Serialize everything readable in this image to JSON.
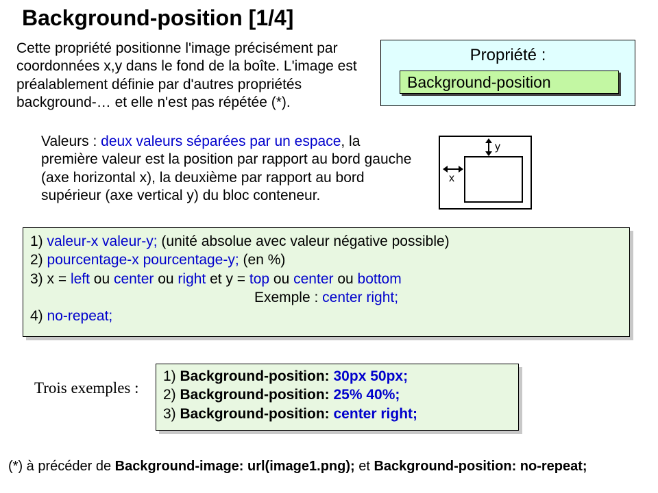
{
  "title": "Background-position [1/4]",
  "intro": "Cette propriété positionne l'image précisément par coordonnées x,y dans le fond de la boîte. L'image est préalablement définie par d'autres propriétés background-… et elle n'est pas répétée (*).",
  "propbox": {
    "label": "Propriété :",
    "value": "Background-position",
    "bg": "#e0ffff",
    "badge_bg": "#c3f7a3",
    "border": "#000000"
  },
  "values": {
    "prefix": "Valeurs : ",
    "highlight": "deux valeurs séparées par un espace",
    "rest": ", la première valeur est la position par rapport au bord gauche (axe horizontal x), la deuxième par rapport au bord supérieur (axe vertical y) du bloc conteneur."
  },
  "diagram": {
    "x": "x",
    "y": "y",
    "border": "#000000"
  },
  "rules": {
    "bg": "#e8f7e1",
    "l1_a": "1) ",
    "l1_b": "valeur-x valeur-y;",
    "l1_c": " (unité absolue avec valeur négative possible)",
    "l2_a": "2) ",
    "l2_b": "pourcentage-x pourcentage-y;",
    "l2_c": "  (en %)",
    "l3_a": "3) x = ",
    "l3_left": "left",
    "l3_or1": " ou ",
    "l3_center1": "center",
    "l3_or2": " ou ",
    "l3_right": "right",
    "l3_mid": " et y = ",
    "l3_top": "top",
    "l3_or3": " ou ",
    "l3_center2": "center",
    "l3_or4": " ou ",
    "l3_bottom": "bottom",
    "l4_a": "Exemple : ",
    "l4_b": "center right;",
    "l5_a": "4) ",
    "l5_b": "no-repeat;"
  },
  "trois": "Trois exemples :",
  "ex": {
    "bg": "#e8f7e1",
    "l1_a": "1) ",
    "l1_b": "Background-position:",
    "l1_c": " 30px 50px;",
    "l2_a": "2) ",
    "l2_b": "Background-position:",
    "l2_c": " 25% 40%;",
    "l3_a": "3) ",
    "l3_b": "Background-position:",
    "l3_c": " center right;"
  },
  "footnote": {
    "a": "(*) à précéder de ",
    "b": "Background-image: url(image1.png);",
    "c": " et ",
    "d": "Background-position: no-repeat;"
  },
  "colors": {
    "blue": "#0000cc",
    "text": "#000000",
    "page_bg": "#ffffff"
  },
  "fonts": {
    "main": "Arial",
    "serif": "Times New Roman",
    "title_size": 32,
    "body_size": 21
  }
}
